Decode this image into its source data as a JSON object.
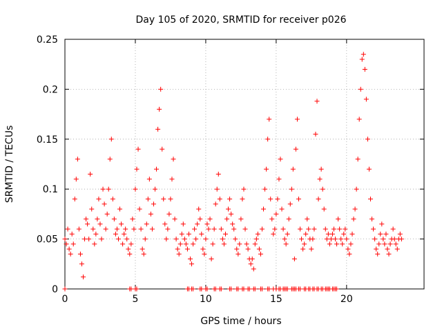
{
  "chart_data": {
    "type": "scatter",
    "title": "Day 105 of 2020, SRMTID for receiver p026",
    "xlabel": "GPS time / hours",
    "ylabel": "SRMTID / TECUs",
    "xlim": [
      0,
      25.5
    ],
    "ylim": [
      0,
      0.25
    ],
    "x_ticks": [
      0,
      5,
      10,
      15,
      20
    ],
    "y_ticks": [
      0,
      0.05,
      0.1,
      0.15,
      0.2,
      0.25
    ],
    "x_tick_labels": [
      "0",
      "5",
      "10",
      "15",
      "20"
    ],
    "y_tick_labels": [
      "0",
      "0.05",
      "0.1",
      "0.15",
      "0.2",
      "0.25"
    ],
    "grid": true,
    "marker": "+",
    "color": "#ff0000",
    "series": [
      {
        "name": "SRMTID",
        "points": [
          [
            0.0,
            0.05
          ],
          [
            0.1,
            0.045
          ],
          [
            0.2,
            0.06
          ],
          [
            0.3,
            0.04
          ],
          [
            0.4,
            0.035
          ],
          [
            0.5,
            0.055
          ],
          [
            0.6,
            0.045
          ],
          [
            0.7,
            0.09
          ],
          [
            0.8,
            0.11
          ],
          [
            0.9,
            0.13
          ],
          [
            1.0,
            0.06
          ],
          [
            1.1,
            0.035
          ],
          [
            1.2,
            0.025
          ],
          [
            1.3,
            0.012
          ],
          [
            1.4,
            0.05
          ],
          [
            1.5,
            0.07
          ],
          [
            1.6,
            0.065
          ],
          [
            1.7,
            0.05
          ],
          [
            1.8,
            0.115
          ],
          [
            1.9,
            0.08
          ],
          [
            2.0,
            0.06
          ],
          [
            2.1,
            0.045
          ],
          [
            2.2,
            0.055
          ],
          [
            2.3,
            0.07
          ],
          [
            2.4,
            0.09
          ],
          [
            2.5,
            0.065
          ],
          [
            2.6,
            0.05
          ],
          [
            2.7,
            0.1
          ],
          [
            2.8,
            0.085
          ],
          [
            2.9,
            0.06
          ],
          [
            3.0,
            0.075
          ],
          [
            3.1,
            0.1
          ],
          [
            3.2,
            0.13
          ],
          [
            3.3,
            0.15
          ],
          [
            3.4,
            0.09
          ],
          [
            3.5,
            0.07
          ],
          [
            3.6,
            0.055
          ],
          [
            3.7,
            0.06
          ],
          [
            3.8,
            0.05
          ],
          [
            3.9,
            0.08
          ],
          [
            4.0,
            0.065
          ],
          [
            4.1,
            0.045
          ],
          [
            4.2,
            0.055
          ],
          [
            4.3,
            0.06
          ],
          [
            4.4,
            0.05
          ],
          [
            4.5,
            0.04
          ],
          [
            4.6,
            0.035
          ],
          [
            4.7,
            0.045
          ],
          [
            4.8,
            0.07
          ],
          [
            4.9,
            0.06
          ],
          [
            5.0,
            0.1
          ],
          [
            5.1,
            0.12
          ],
          [
            5.2,
            0.14
          ],
          [
            5.3,
            0.08
          ],
          [
            5.4,
            0.06
          ],
          [
            5.5,
            0.04
          ],
          [
            5.6,
            0.035
          ],
          [
            5.7,
            0.05
          ],
          [
            5.8,
            0.065
          ],
          [
            5.9,
            0.09
          ],
          [
            6.0,
            0.11
          ],
          [
            6.1,
            0.075
          ],
          [
            6.2,
            0.06
          ],
          [
            6.3,
            0.085
          ],
          [
            6.4,
            0.1
          ],
          [
            6.5,
            0.12
          ],
          [
            6.6,
            0.16
          ],
          [
            6.7,
            0.18
          ],
          [
            6.8,
            0.2
          ],
          [
            6.9,
            0.14
          ],
          [
            7.0,
            0.09
          ],
          [
            7.1,
            0.065
          ],
          [
            7.2,
            0.05
          ],
          [
            7.3,
            0.06
          ],
          [
            7.4,
            0.075
          ],
          [
            7.5,
            0.09
          ],
          [
            7.6,
            0.11
          ],
          [
            7.7,
            0.13
          ],
          [
            7.8,
            0.07
          ],
          [
            7.9,
            0.05
          ],
          [
            8.0,
            0.04
          ],
          [
            8.1,
            0.035
          ],
          [
            8.2,
            0.045
          ],
          [
            8.3,
            0.055
          ],
          [
            8.4,
            0.065
          ],
          [
            8.5,
            0.05
          ],
          [
            8.6,
            0.045
          ],
          [
            8.7,
            0.04
          ],
          [
            8.8,
            0.055
          ],
          [
            8.9,
            0.03
          ],
          [
            9.0,
            0.025
          ],
          [
            9.1,
            0.045
          ],
          [
            9.2,
            0.06
          ],
          [
            9.3,
            0.05
          ],
          [
            9.4,
            0.065
          ],
          [
            9.5,
            0.08
          ],
          [
            9.6,
            0.07
          ],
          [
            9.7,
            0.055
          ],
          [
            9.8,
            0.04
          ],
          [
            9.9,
            0.035
          ],
          [
            10.0,
            0.05
          ],
          [
            10.1,
            0.065
          ],
          [
            10.2,
            0.06
          ],
          [
            10.3,
            0.07
          ],
          [
            10.4,
            0.03
          ],
          [
            10.5,
            0.045
          ],
          [
            10.6,
            0.06
          ],
          [
            10.7,
            0.085
          ],
          [
            10.8,
            0.1
          ],
          [
            10.9,
            0.115
          ],
          [
            11.0,
            0.09
          ],
          [
            11.1,
            0.06
          ],
          [
            11.2,
            0.05
          ],
          [
            11.3,
            0.045
          ],
          [
            11.4,
            0.055
          ],
          [
            11.5,
            0.07
          ],
          [
            11.6,
            0.08
          ],
          [
            11.7,
            0.09
          ],
          [
            11.8,
            0.075
          ],
          [
            11.9,
            0.065
          ],
          [
            12.0,
            0.06
          ],
          [
            12.1,
            0.05
          ],
          [
            12.2,
            0.04
          ],
          [
            12.3,
            0.035
          ],
          [
            12.4,
            0.045
          ],
          [
            12.5,
            0.07
          ],
          [
            12.6,
            0.09
          ],
          [
            12.7,
            0.1
          ],
          [
            12.8,
            0.06
          ],
          [
            12.9,
            0.045
          ],
          [
            13.0,
            0.04
          ],
          [
            13.1,
            0.03
          ],
          [
            13.2,
            0.025
          ],
          [
            13.3,
            0.03
          ],
          [
            13.4,
            0.02
          ],
          [
            13.5,
            0.045
          ],
          [
            13.6,
            0.05
          ],
          [
            13.7,
            0.055
          ],
          [
            13.8,
            0.04
          ],
          [
            13.9,
            0.035
          ],
          [
            14.0,
            0.06
          ],
          [
            14.1,
            0.08
          ],
          [
            14.2,
            0.1
          ],
          [
            14.3,
            0.12
          ],
          [
            14.4,
            0.15
          ],
          [
            14.5,
            0.17
          ],
          [
            14.6,
            0.09
          ],
          [
            14.7,
            0.07
          ],
          [
            14.8,
            0.055
          ],
          [
            14.9,
            0.06
          ],
          [
            15.0,
            0.075
          ],
          [
            15.1,
            0.09
          ],
          [
            15.2,
            0.11
          ],
          [
            15.3,
            0.13
          ],
          [
            15.4,
            0.08
          ],
          [
            15.5,
            0.06
          ],
          [
            15.6,
            0.05
          ],
          [
            15.7,
            0.045
          ],
          [
            15.8,
            0.055
          ],
          [
            15.9,
            0.07
          ],
          [
            16.0,
            0.085
          ],
          [
            16.1,
            0.1
          ],
          [
            16.2,
            0.12
          ],
          [
            16.3,
            0.03
          ],
          [
            16.4,
            0.14
          ],
          [
            16.5,
            0.17
          ],
          [
            16.6,
            0.09
          ],
          [
            16.7,
            0.06
          ],
          [
            16.8,
            0.05
          ],
          [
            16.9,
            0.04
          ],
          [
            17.0,
            0.045
          ],
          [
            17.1,
            0.055
          ],
          [
            17.2,
            0.07
          ],
          [
            17.3,
            0.06
          ],
          [
            17.4,
            0.05
          ],
          [
            17.5,
            0.04
          ],
          [
            17.6,
            0.05
          ],
          [
            17.7,
            0.06
          ],
          [
            17.8,
            0.155
          ],
          [
            17.9,
            0.188
          ],
          [
            18.0,
            0.09
          ],
          [
            18.1,
            0.11
          ],
          [
            18.2,
            0.12
          ],
          [
            18.3,
            0.1
          ],
          [
            18.4,
            0.08
          ],
          [
            18.5,
            0.06
          ],
          [
            18.6,
            0.05
          ],
          [
            18.7,
            0.055
          ],
          [
            18.8,
            0.045
          ],
          [
            18.9,
            0.05
          ],
          [
            19.0,
            0.055
          ],
          [
            19.1,
            0.06
          ],
          [
            19.2,
            0.05
          ],
          [
            19.3,
            0.045
          ],
          [
            19.4,
            0.07
          ],
          [
            19.5,
            0.06
          ],
          [
            19.6,
            0.05
          ],
          [
            19.7,
            0.045
          ],
          [
            19.8,
            0.055
          ],
          [
            19.9,
            0.06
          ],
          [
            20.0,
            0.05
          ],
          [
            20.1,
            0.04
          ],
          [
            20.2,
            0.035
          ],
          [
            20.3,
            0.045
          ],
          [
            20.4,
            0.055
          ],
          [
            20.5,
            0.07
          ],
          [
            20.6,
            0.08
          ],
          [
            20.7,
            0.1
          ],
          [
            20.8,
            0.13
          ],
          [
            20.9,
            0.17
          ],
          [
            21.0,
            0.2
          ],
          [
            21.1,
            0.23
          ],
          [
            21.2,
            0.235
          ],
          [
            21.3,
            0.22
          ],
          [
            21.4,
            0.19
          ],
          [
            21.5,
            0.15
          ],
          [
            21.6,
            0.12
          ],
          [
            21.7,
            0.09
          ],
          [
            21.8,
            0.07
          ],
          [
            21.9,
            0.06
          ],
          [
            22.0,
            0.05
          ],
          [
            22.1,
            0.04
          ],
          [
            22.2,
            0.035
          ],
          [
            22.3,
            0.045
          ],
          [
            22.4,
            0.055
          ],
          [
            22.5,
            0.065
          ],
          [
            22.6,
            0.05
          ],
          [
            22.7,
            0.045
          ],
          [
            22.8,
            0.055
          ],
          [
            22.9,
            0.04
          ],
          [
            23.0,
            0.035
          ],
          [
            23.1,
            0.045
          ],
          [
            23.2,
            0.05
          ],
          [
            23.3,
            0.06
          ],
          [
            23.4,
            0.05
          ],
          [
            23.5,
            0.045
          ],
          [
            23.6,
            0.04
          ],
          [
            23.7,
            0.05
          ],
          [
            23.8,
            0.055
          ],
          [
            23.9,
            0.05
          ]
        ],
        "zero_hours": [
          0.0,
          4.6,
          4.7,
          5.0,
          5.1,
          8.7,
          8.8,
          9.0,
          9.1,
          9.6,
          9.7,
          10.0,
          10.1,
          10.6,
          10.7,
          11.0,
          11.1,
          11.7,
          11.8,
          12.2,
          12.3,
          12.6,
          12.7,
          13.0,
          13.1,
          13.4,
          13.5,
          13.9,
          14.0,
          14.4,
          14.5,
          14.8,
          15.0,
          15.2,
          15.3,
          15.5,
          15.6,
          15.7,
          15.8,
          16.1,
          16.2,
          16.3,
          16.4,
          16.6,
          16.7,
          17.0,
          17.1,
          17.3,
          17.4,
          17.6,
          17.7,
          17.9,
          18.0,
          18.2,
          18.3,
          18.5,
          18.6,
          18.7,
          18.8,
          19.0,
          19.1,
          19.2,
          19.3
        ]
      }
    ]
  }
}
